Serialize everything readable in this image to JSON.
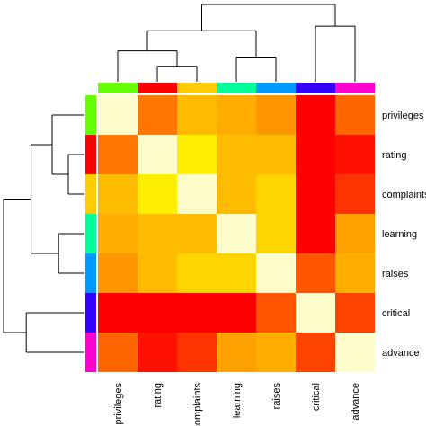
{
  "chart_data": {
    "type": "heatmap",
    "title": "",
    "xlabel": "",
    "ylabel": "",
    "variables": [
      "privileges",
      "rating",
      "complaints",
      "learning",
      "raises",
      "critical",
      "advance"
    ],
    "row_labels": [
      "privileges",
      "rating",
      "complaints",
      "learning",
      "raises",
      "critical",
      "advance"
    ],
    "col_labels": [
      "privileges",
      "rating",
      "complaints",
      "learning",
      "raises",
      "critical",
      "advance"
    ],
    "group_colors": [
      "#66ff00",
      "#ff0000",
      "#ffcc00",
      "#00ff99",
      "#0099ff",
      "#3300ff",
      "#ff00cc"
    ],
    "color_scale": {
      "low_to_high": [
        "#ff0000",
        "#ff4400",
        "#ff8800",
        "#ffbb00",
        "#ffee00",
        "#fffccc"
      ],
      "range": [
        0,
        1
      ]
    },
    "values": [
      [
        1.0,
        0.35,
        0.6,
        0.55,
        0.45,
        0.0,
        0.3
      ],
      [
        0.35,
        1.0,
        0.8,
        0.6,
        0.6,
        0.0,
        0.05
      ],
      [
        0.6,
        0.8,
        1.0,
        0.6,
        0.7,
        0.0,
        0.15
      ],
      [
        0.55,
        0.6,
        0.6,
        1.0,
        0.7,
        0.0,
        0.5
      ],
      [
        0.45,
        0.6,
        0.7,
        0.7,
        1.0,
        0.25,
        0.55
      ],
      [
        0.0,
        0.0,
        0.0,
        0.0,
        0.25,
        1.0,
        0.2
      ],
      [
        0.3,
        0.05,
        0.15,
        0.5,
        0.55,
        0.2,
        1.0
      ]
    ],
    "dendrogram": {
      "merges": [
        {
          "a": "rating",
          "b": "complaints",
          "height": 1
        },
        {
          "a": "privileges",
          "b": "rating+complaints",
          "height": 2
        },
        {
          "a": "learning",
          "b": "raises",
          "height": 1.6
        },
        {
          "a": "privileges+rating+complaints",
          "b": "learning+raises",
          "height": 3.3
        },
        {
          "a": "critical",
          "b": "advance",
          "height": 3.6
        },
        {
          "a": "left",
          "b": "critical+advance",
          "height": 5
        }
      ]
    }
  }
}
